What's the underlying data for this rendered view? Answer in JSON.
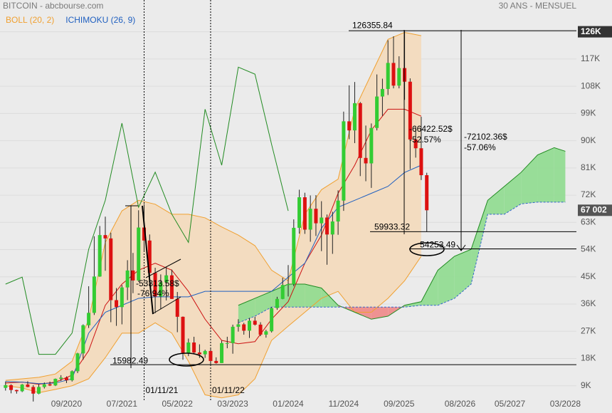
{
  "chart_data": {
    "type": "candlestick",
    "title": "BITCOIN - abcbourse.com",
    "subtitle": "30 ANS - MENSUEL",
    "legend": [
      {
        "label": "BOLL (20, 2)",
        "color": "#f0a030"
      },
      {
        "label": "ICHIMOKU (26, 9)",
        "color": "#2060c0"
      }
    ],
    "up_color": "#33cc33",
    "down_color": "#dd1111",
    "x": [
      "10/2019",
      "11/2019",
      "12/2019",
      "01/2020",
      "02/2020",
      "03/2020",
      "04/2020",
      "05/2020",
      "06/2020",
      "07/2020",
      "08/2020",
      "09/2020",
      "10/2020",
      "11/2020",
      "12/2020",
      "01/2021",
      "02/2021",
      "03/2021",
      "04/2021",
      "05/2021",
      "06/2021",
      "07/2021",
      "08/2021",
      "09/2021",
      "10/2021",
      "11/2021",
      "12/2021",
      "01/2022",
      "02/2022",
      "03/2022",
      "04/2022",
      "05/2022",
      "06/2022",
      "07/2022",
      "08/2022",
      "09/2022",
      "10/2022",
      "11/2022",
      "12/2022",
      "01/2023",
      "02/2023",
      "03/2023",
      "04/2023",
      "05/2023",
      "06/2023",
      "07/2023",
      "08/2023",
      "09/2023",
      "10/2023",
      "11/2023",
      "12/2023",
      "01/2024",
      "02/2024",
      "03/2024",
      "04/2024",
      "05/2024",
      "06/2024",
      "07/2024",
      "08/2024",
      "09/2024",
      "10/2024",
      "11/2024",
      "12/2024",
      "01/2025",
      "02/2025",
      "03/2025",
      "04/2025",
      "05/2025",
      "06/2025",
      "07/2025",
      "08/2025",
      "09/2025",
      "10/2025",
      "11/2025",
      "12/2025",
      "01/2026",
      "02/2026"
    ],
    "open": [
      8300,
      9200,
      7600,
      7200,
      9400,
      8600,
      6400,
      8600,
      9500,
      9100,
      11300,
      11700,
      10800,
      13800,
      19700,
      29000,
      33100,
      45100,
      58800,
      57700,
      37300,
      35000,
      41500,
      47100,
      43800,
      61300,
      57000,
      46300,
      38500,
      43200,
      45500,
      37700,
      31800,
      19900,
      23300,
      20000,
      19400,
      20500,
      17200,
      16500,
      23100,
      23100,
      28500,
      29300,
      27200,
      30500,
      29200,
      25900,
      27000,
      34700,
      37700,
      42300,
      42600,
      61200,
      71300,
      60600,
      67500,
      62700,
      64600,
      59000,
      63300,
      70200,
      96400,
      93400,
      102400,
      84300,
      82500,
      94200,
      104600,
      107100,
      115700,
      108200,
      114000,
      109500,
      90400,
      87500,
      78600
    ],
    "high": [
      10400,
      9500,
      7700,
      9600,
      10500,
      9200,
      9500,
      10100,
      10400,
      11400,
      12500,
      12100,
      14100,
      19900,
      29300,
      41900,
      58400,
      61800,
      64900,
      59600,
      41300,
      42300,
      50500,
      52900,
      67000,
      69000,
      59000,
      48000,
      45800,
      48200,
      47400,
      40000,
      31900,
      24600,
      25200,
      22700,
      20900,
      21500,
      18400,
      23900,
      25200,
      29200,
      31000,
      29800,
      31400,
      31800,
      30000,
      27500,
      35000,
      38400,
      44700,
      48900,
      64000,
      73800,
      72800,
      71900,
      72000,
      70000,
      65600,
      66500,
      73600,
      99600,
      108300,
      109400,
      102800,
      95000,
      95700,
      111900,
      110500,
      123200,
      124500,
      117900,
      126355.84,
      110600,
      94600,
      97900,
      79400
    ],
    "low": [
      7400,
      6500,
      6400,
      6900,
      8500,
      3800,
      6200,
      8100,
      8900,
      8900,
      10600,
      9900,
      10400,
      13200,
      17600,
      28100,
      32400,
      45000,
      47000,
      30000,
      28800,
      29300,
      37300,
      39600,
      43300,
      53300,
      42000,
      33000,
      34300,
      37200,
      37700,
      26700,
      17600,
      18800,
      19600,
      18200,
      18200,
      15600,
      16300,
      16500,
      21400,
      19600,
      26900,
      25900,
      24800,
      28900,
      25400,
      24900,
      26600,
      34100,
      37600,
      38500,
      41900,
      59300,
      59200,
      56600,
      58500,
      53500,
      49000,
      52600,
      58900,
      66800,
      90500,
      89200,
      78300,
      76600,
      74400,
      93400,
      98200,
      105100,
      107300,
      107300,
      103500,
      80600,
      84400,
      77000,
      59933.32
    ],
    "close": [
      9200,
      7600,
      7200,
      9400,
      8600,
      6400,
      8600,
      9500,
      9100,
      11300,
      11700,
      10800,
      13800,
      19700,
      29000,
      33100,
      45100,
      58800,
      57700,
      37300,
      35000,
      41500,
      47100,
      43800,
      61300,
      57000,
      46300,
      38500,
      43200,
      45500,
      37700,
      31800,
      19900,
      23300,
      20000,
      19400,
      20500,
      17200,
      16500,
      23100,
      23100,
      28500,
      29300,
      27200,
      30500,
      29200,
      25900,
      27000,
      34700,
      37700,
      42300,
      42600,
      61200,
      71300,
      60600,
      67500,
      62700,
      64600,
      59000,
      63300,
      70200,
      96400,
      93400,
      102400,
      84300,
      82500,
      94200,
      104600,
      107100,
      115700,
      108200,
      114000,
      109500,
      90400,
      87500,
      78600,
      67002
    ],
    "last_price": {
      "value": 67002,
      "label": "67 002"
    },
    "xlim": [
      "09/2019",
      "05/2028"
    ],
    "xticks": [
      "09/2020",
      "07/2021",
      "05/2022",
      "03/2023",
      "01/2024",
      "11/2024",
      "09/2025",
      "08/2026",
      "05/2027",
      "03/2028"
    ],
    "ylim": [
      4000,
      136500
    ],
    "yticks": [
      {
        "value": 9000,
        "label": "9K"
      },
      {
        "value": 18000,
        "label": "18K"
      },
      {
        "value": 27000,
        "label": "27K"
      },
      {
        "value": 36000,
        "label": "36K"
      },
      {
        "value": 45000,
        "label": "45K"
      },
      {
        "value": 54000,
        "label": "54K"
      },
      {
        "value": 63000,
        "label": "63K"
      },
      {
        "value": 72000,
        "label": "72K"
      },
      {
        "value": 81000,
        "label": "81K"
      },
      {
        "value": 90000,
        "label": "90K"
      },
      {
        "value": 99000,
        "label": "99K"
      },
      {
        "value": 108000,
        "label": "108K"
      },
      {
        "value": 117000,
        "label": "117K"
      },
      {
        "value": 126000,
        "label": "126K"
      }
    ],
    "grid": true,
    "indicators": {
      "x": [
        "10/2019",
        "01/2020",
        "04/2020",
        "07/2020",
        "10/2020",
        "01/2021",
        "04/2021",
        "07/2021",
        "10/2021",
        "01/2022",
        "04/2022",
        "07/2022",
        "10/2022",
        "01/2023",
        "04/2023",
        "07/2023",
        "10/2023",
        "01/2024",
        "04/2024",
        "07/2024",
        "10/2024",
        "01/2025",
        "04/2025",
        "07/2025",
        "10/2025",
        "01/2026",
        "04/2026",
        "07/2026",
        "10/2026",
        "01/2027",
        "04/2027",
        "07/2027",
        "10/2027",
        "01/2028",
        "03/2028"
      ],
      "boll_upper": [
        10800,
        11300,
        11800,
        12900,
        17100,
        31000,
        56400,
        66800,
        70300,
        69000,
        65700,
        65700,
        64500,
        61500,
        58800,
        55300,
        47200,
        43700,
        65700,
        73800,
        77300,
        100400,
        112000,
        123500,
        125800,
        124700,
        null,
        null,
        null,
        null,
        null,
        null,
        null,
        null,
        null
      ],
      "boll_lower": [
        9000,
        8300,
        6700,
        7800,
        9000,
        11300,
        18300,
        26400,
        26400,
        29800,
        26400,
        17100,
        6000,
        5000,
        6000,
        11300,
        24000,
        28700,
        33300,
        37900,
        40200,
        33300,
        33300,
        37900,
        43700,
        51800,
        null,
        null,
        null,
        null,
        null,
        null,
        null,
        null,
        null
      ],
      "boll_mid": [
        9900,
        10200,
        9500,
        10200,
        12500,
        20600,
        35600,
        42600,
        47200,
        49500,
        47200,
        40200,
        31000,
        24000,
        22900,
        23600,
        31000,
        36800,
        49500,
        58800,
        72600,
        81900,
        93500,
        100400,
        100400,
        98100,
        null,
        null,
        null,
        null,
        null,
        null,
        null,
        null,
        null
      ],
      "kijun": [
        10400,
        10200,
        9700,
        9900,
        11300,
        26400,
        33300,
        35600,
        37900,
        38400,
        38400,
        38400,
        40200,
        40200,
        40200,
        40200,
        40200,
        44900,
        49500,
        61100,
        68000,
        70300,
        72600,
        74900,
        79500,
        81900,
        null,
        null,
        null,
        null,
        null,
        null,
        null,
        null,
        null
      ],
      "chikou": [
        42600,
        44900,
        19400,
        19400,
        26400,
        54100,
        70300,
        95800,
        68000,
        79600,
        65700,
        56400,
        100400,
        81900,
        114300,
        112000,
        88800,
        66800,
        null,
        null,
        null,
        null,
        null,
        null,
        null,
        null,
        null,
        null,
        null,
        null,
        null,
        null,
        null,
        null,
        null
      ],
      "senkou_a": [
        null,
        null,
        null,
        null,
        null,
        null,
        null,
        null,
        null,
        null,
        null,
        null,
        null,
        null,
        35600,
        37900,
        40200,
        42600,
        42600,
        41300,
        35600,
        33300,
        31000,
        32000,
        35600,
        36800,
        47200,
        51800,
        54100,
        70300,
        74900,
        79500,
        85300,
        87700,
        86500
      ],
      "senkou_b": [
        null,
        null,
        null,
        null,
        null,
        null,
        null,
        null,
        null,
        null,
        null,
        null,
        null,
        null,
        29800,
        32000,
        35000,
        35000,
        35000,
        35000,
        35000,
        35000,
        35000,
        35000,
        35000,
        35600,
        35600,
        37900,
        42600,
        65700,
        65700,
        69100,
        69700,
        69700,
        69700
      ],
      "colors": {
        "boll_band": "#f0a030",
        "boll_fill": "#f3dcc0",
        "boll_mid": "#cc1111",
        "kijun": "#2060c0",
        "chikou": "#228b22",
        "cloud_up": "#8fdc8f",
        "cloud_down": "#ee8888",
        "senkou_b": "#3366cc"
      }
    },
    "levels": [
      126355.84,
      59933.32,
      54253.49,
      15982.49
    ],
    "vlines": [
      "01/11/21",
      "01/11/22"
    ],
    "annotations": [
      "-66422.52$",
      "-52.57%",
      "-72102.36$",
      "-57.06%",
      "-53313.58$",
      "-76.94%"
    ]
  }
}
